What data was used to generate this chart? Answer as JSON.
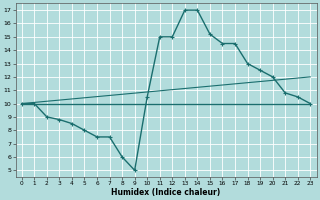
{
  "xlabel": "Humidex (Indice chaleur)",
  "xlim": [
    -0.5,
    23.5
  ],
  "ylim": [
    4.5,
    17.5
  ],
  "xticks": [
    0,
    1,
    2,
    3,
    4,
    5,
    6,
    7,
    8,
    9,
    10,
    11,
    12,
    13,
    14,
    15,
    16,
    17,
    18,
    19,
    20,
    21,
    22,
    23
  ],
  "yticks": [
    5,
    6,
    7,
    8,
    9,
    10,
    11,
    12,
    13,
    14,
    15,
    16,
    17
  ],
  "bg_color": "#b2dcdc",
  "grid_color": "#ffffff",
  "line_color": "#1a6e6e",
  "lines": [
    {
      "x": [
        0,
        1,
        2,
        3,
        4,
        5,
        6,
        7,
        8,
        9,
        10,
        11,
        12,
        13,
        14,
        15,
        16,
        17,
        18,
        19,
        20,
        21,
        22,
        23
      ],
      "y": [
        10,
        10,
        9,
        8.8,
        8.5,
        8,
        7.5,
        7.5,
        6,
        5,
        10.5,
        15,
        15,
        17,
        17,
        15.2,
        14.5,
        14.5,
        13,
        12.5,
        12,
        10.8,
        10.5,
        10
      ],
      "marker": true,
      "lw": 1.0
    },
    {
      "x": [
        0,
        23
      ],
      "y": [
        10,
        10
      ],
      "marker": false,
      "lw": 0.8
    },
    {
      "x": [
        0,
        23
      ],
      "y": [
        10,
        10
      ],
      "marker": false,
      "lw": 0.8
    },
    {
      "x": [
        0,
        23
      ],
      "y": [
        10,
        12
      ],
      "marker": false,
      "lw": 0.8
    },
    {
      "x": [
        0,
        23
      ],
      "y": [
        10,
        10
      ],
      "marker": false,
      "lw": 0.8
    }
  ]
}
